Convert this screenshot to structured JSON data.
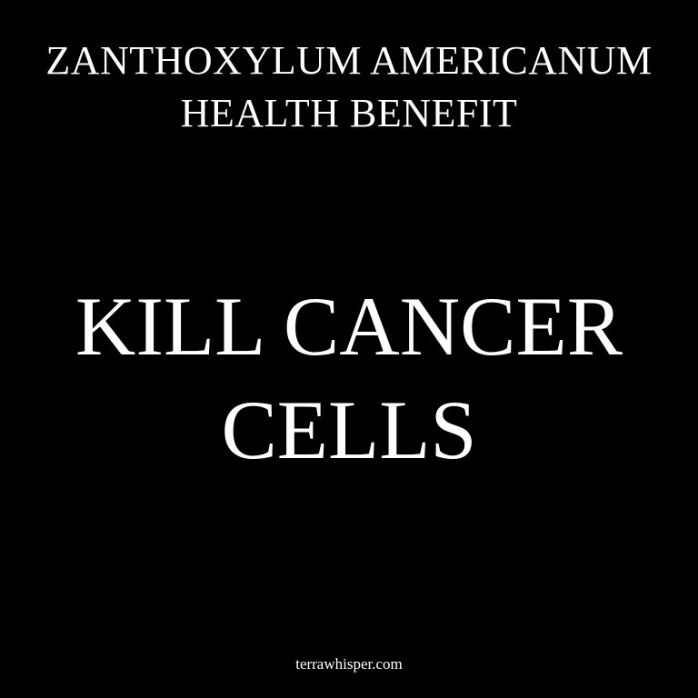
{
  "header": {
    "line1": "ZANTHOXYLUM AMERICANUM",
    "line2": "HEALTH BENEFIT"
  },
  "headline": {
    "line1": "KILL CANCER",
    "line2": "CELLS"
  },
  "footer": {
    "website": "terrawhisper.com"
  },
  "colors": {
    "background": "#000000",
    "text": "#ffffff"
  }
}
